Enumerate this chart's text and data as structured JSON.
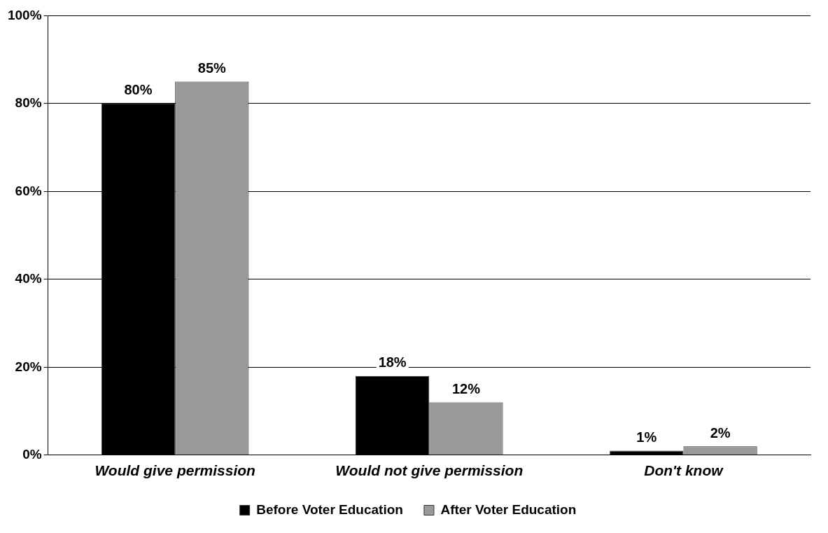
{
  "chart_data": {
    "type": "bar",
    "categories": [
      "Would give permission",
      "Would not give permission",
      "Don't know"
    ],
    "series": [
      {
        "name": "Before Voter Education",
        "color": "#000000",
        "values": [
          80,
          18,
          1
        ],
        "value_labels": [
          "80%",
          "18%",
          "1%"
        ]
      },
      {
        "name": "After Voter Education",
        "color": "#999999",
        "values": [
          85,
          12,
          2
        ],
        "value_labels": [
          "85%",
          "12%",
          "2%"
        ]
      }
    ],
    "ylim": [
      0,
      100
    ],
    "yticks": [
      {
        "value": 0,
        "label": "0%"
      },
      {
        "value": 20,
        "label": "20%"
      },
      {
        "value": 40,
        "label": "40%"
      },
      {
        "value": 60,
        "label": "60%"
      },
      {
        "value": 80,
        "label": "80%"
      },
      {
        "value": 100,
        "label": "100%"
      }
    ],
    "grid": "y",
    "legend": "bottom"
  }
}
